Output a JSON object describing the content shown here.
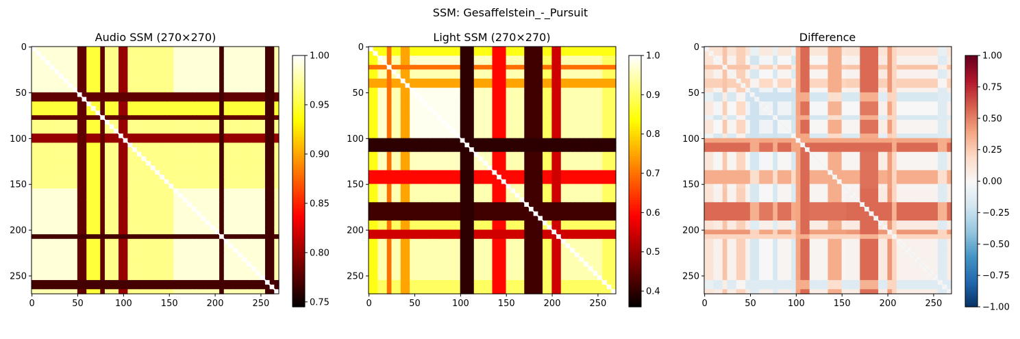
{
  "figure": {
    "title": "SSM: Gesaffelstein_-_Pursuit"
  },
  "chart_data": [
    {
      "type": "heatmap",
      "title": "Audio SSM (270×270)",
      "n": 270,
      "colormap": "hot",
      "vmin": 0.745,
      "vmax": 1.0,
      "xticks": [
        0,
        50,
        100,
        150,
        200,
        250
      ],
      "yticks": [
        0,
        50,
        100,
        150,
        200,
        250
      ],
      "colorbar_ticks": [
        0.75,
        0.8,
        0.85,
        0.9,
        0.95,
        1.0
      ],
      "colorbar_labels": [
        "0.75",
        "0.80",
        "0.85",
        "0.90",
        "0.95",
        "1.00"
      ],
      "segments": [
        {
          "start": 0,
          "end": 50,
          "value": 0.99
        },
        {
          "start": 50,
          "end": 60,
          "value": 0.78
        },
        {
          "start": 60,
          "end": 75,
          "value": 0.95
        },
        {
          "start": 75,
          "end": 80,
          "value": 0.78
        },
        {
          "start": 80,
          "end": 95,
          "value": 0.97
        },
        {
          "start": 95,
          "end": 105,
          "value": 0.8
        },
        {
          "start": 105,
          "end": 155,
          "value": 0.97
        },
        {
          "start": 155,
          "end": 205,
          "value": 0.99
        },
        {
          "start": 205,
          "end": 210,
          "value": 0.77
        },
        {
          "start": 210,
          "end": 255,
          "value": 0.99
        },
        {
          "start": 255,
          "end": 262,
          "value": 0.77
        },
        {
          "start": 262,
          "end": 270,
          "value": 0.98
        }
      ]
    },
    {
      "type": "heatmap",
      "title": "Light SSM (270×270)",
      "n": 270,
      "colormap": "hot",
      "vmin": 0.36,
      "vmax": 1.0,
      "xticks": [
        0,
        50,
        100,
        150,
        200,
        250
      ],
      "yticks": [
        0,
        50,
        100,
        150,
        200,
        250
      ],
      "colorbar_ticks": [
        0.4,
        0.5,
        0.6,
        0.7,
        0.8,
        0.9,
        1.0
      ],
      "colorbar_labels": [
        "0.4",
        "0.5",
        "0.6",
        "0.7",
        "0.8",
        "0.9",
        "1.0"
      ],
      "segments": [
        {
          "start": 0,
          "end": 10,
          "value": 0.85
        },
        {
          "start": 10,
          "end": 20,
          "value": 0.97
        },
        {
          "start": 20,
          "end": 25,
          "value": 0.7
        },
        {
          "start": 25,
          "end": 35,
          "value": 0.95
        },
        {
          "start": 35,
          "end": 45,
          "value": 0.75
        },
        {
          "start": 45,
          "end": 100,
          "value": 0.99
        },
        {
          "start": 100,
          "end": 115,
          "value": 0.4
        },
        {
          "start": 115,
          "end": 135,
          "value": 0.96
        },
        {
          "start": 135,
          "end": 148,
          "value": 0.6
        },
        {
          "start": 148,
          "end": 170,
          "value": 0.95
        },
        {
          "start": 170,
          "end": 188,
          "value": 0.42
        },
        {
          "start": 188,
          "end": 200,
          "value": 0.9
        },
        {
          "start": 200,
          "end": 210,
          "value": 0.55
        },
        {
          "start": 210,
          "end": 255,
          "value": 0.95
        },
        {
          "start": 255,
          "end": 270,
          "value": 0.9
        }
      ]
    },
    {
      "type": "heatmap",
      "title": "Difference",
      "n": 270,
      "colormap": "RdBu_r",
      "vmin": -1.0,
      "vmax": 1.0,
      "xticks": [
        0,
        50,
        100,
        150,
        200,
        250
      ],
      "yticks": [
        0,
        50,
        100,
        150,
        200,
        250
      ],
      "colorbar_ticks": [
        1.0,
        0.75,
        0.5,
        0.25,
        0.0,
        -0.25,
        -0.5,
        -0.75,
        -1.0
      ],
      "colorbar_labels": [
        "1.00",
        "0.75",
        "0.50",
        "0.25",
        "0.00",
        "−0.25",
        "−0.50",
        "−0.75",
        "−1.00"
      ]
    }
  ]
}
